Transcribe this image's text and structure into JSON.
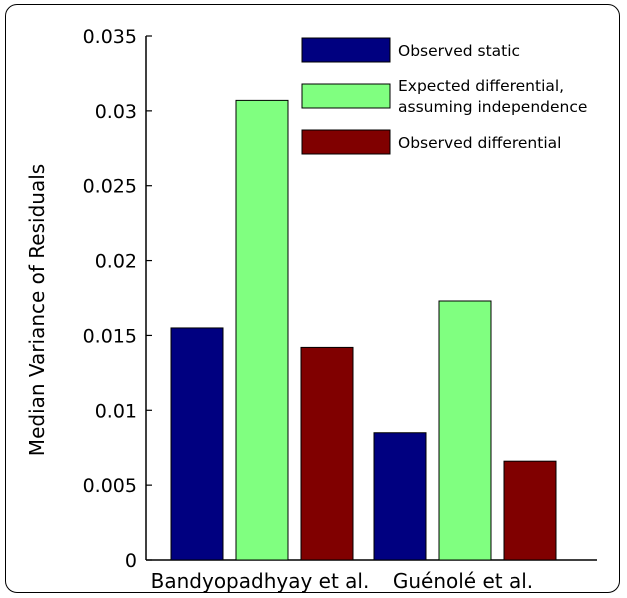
{
  "chart_data": {
    "type": "bar",
    "title": "",
    "xlabel": "",
    "ylabel": "Median Variance of Residuals",
    "ylim": [
      0,
      0.035
    ],
    "yticks": [
      "0",
      "0.005",
      "0.01",
      "0.015",
      "0.02",
      "0.025",
      "0.03",
      "0.035"
    ],
    "grid": false,
    "legend_position": "top-right",
    "categories": [
      "Bandyopadhyay et al.",
      "Guénolé et al."
    ],
    "series": [
      {
        "name": "Observed static",
        "legend_lines": [
          "Observed static"
        ],
        "color": "#000080",
        "values": [
          0.0155,
          0.0085
        ]
      },
      {
        "name": "Expected differential, assuming independence",
        "legend_lines": [
          "Expected differential,",
          "assuming independence"
        ],
        "color": "#80ff80",
        "values": [
          0.0307,
          0.0173
        ]
      },
      {
        "name": "Observed differential",
        "legend_lines": [
          "Observed differential"
        ],
        "color": "#800000",
        "values": [
          0.0142,
          0.0066
        ]
      }
    ]
  }
}
